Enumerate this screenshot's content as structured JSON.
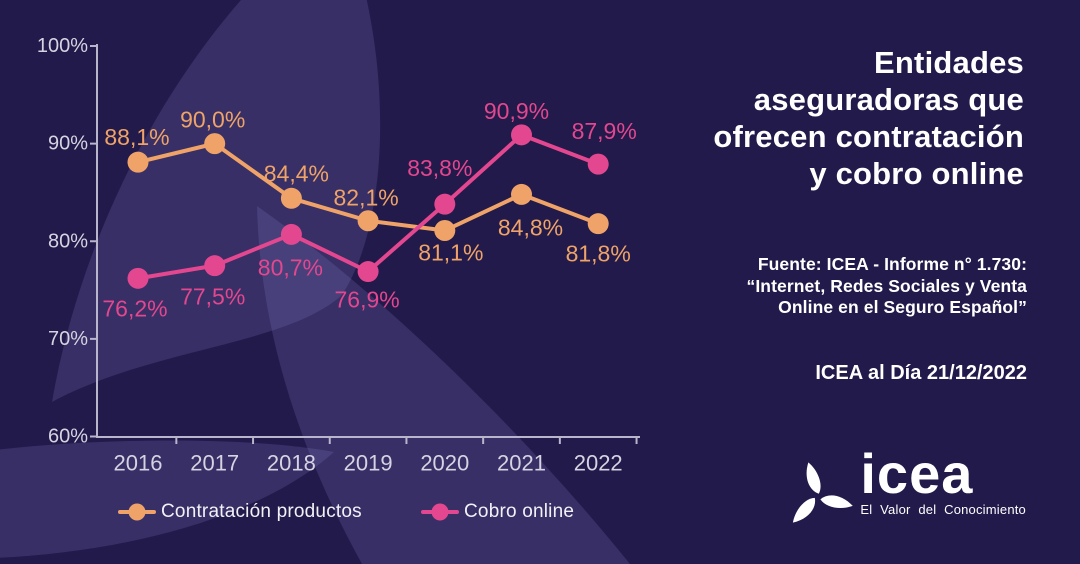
{
  "page": {
    "background_color": "#211A4A",
    "petal_color": "rgba(136,126,205,0.21)",
    "axis_color": "#B9B5CC",
    "tick_label_color": "#D6D3E2",
    "text_color": "#FFFFFF"
  },
  "header": {
    "title_lines": [
      "Entidades",
      "aseguradoras que",
      "ofrecen contratación",
      "y cobro online"
    ]
  },
  "source": {
    "lines": [
      "Fuente: ICEA - Informe n° 1.730:",
      "“Internet, Redes Sociales y Venta",
      "Online en el Seguro Español”"
    ],
    "date": "ICEA al Día 21/12/2022"
  },
  "logo": {
    "wordmark": "icea",
    "tagline": "El Valor del Conocimiento"
  },
  "chart_data": {
    "type": "line",
    "title": "Entidades aseguradoras que ofrecen contratación y cobro online",
    "categories": [
      "2016",
      "2017",
      "2018",
      "2019",
      "2020",
      "2021",
      "2022"
    ],
    "series": [
      {
        "name": "Contratación productos",
        "color": "#EFA368",
        "values": [
          88.1,
          90.0,
          84.4,
          82.1,
          81.1,
          84.8,
          81.8
        ],
        "labels": [
          "88,1%",
          "90,0%",
          "84,4%",
          "82,1%",
          "81,1%",
          "84,8%",
          "81,8%"
        ]
      },
      {
        "name": "Cobro online",
        "color": "#E2478F",
        "values": [
          76.2,
          77.5,
          80.7,
          76.9,
          83.8,
          90.9,
          87.9
        ],
        "labels": [
          "76,2%",
          "77,5%",
          "80,7%",
          "76,9%",
          "83,8%",
          "90,9%",
          "87,9%"
        ]
      }
    ],
    "ylim": [
      60,
      100
    ],
    "yticks": [
      100,
      90,
      80,
      70,
      60
    ],
    "ytick_suffix": "%",
    "grid": false,
    "legend_position": "bottom"
  }
}
